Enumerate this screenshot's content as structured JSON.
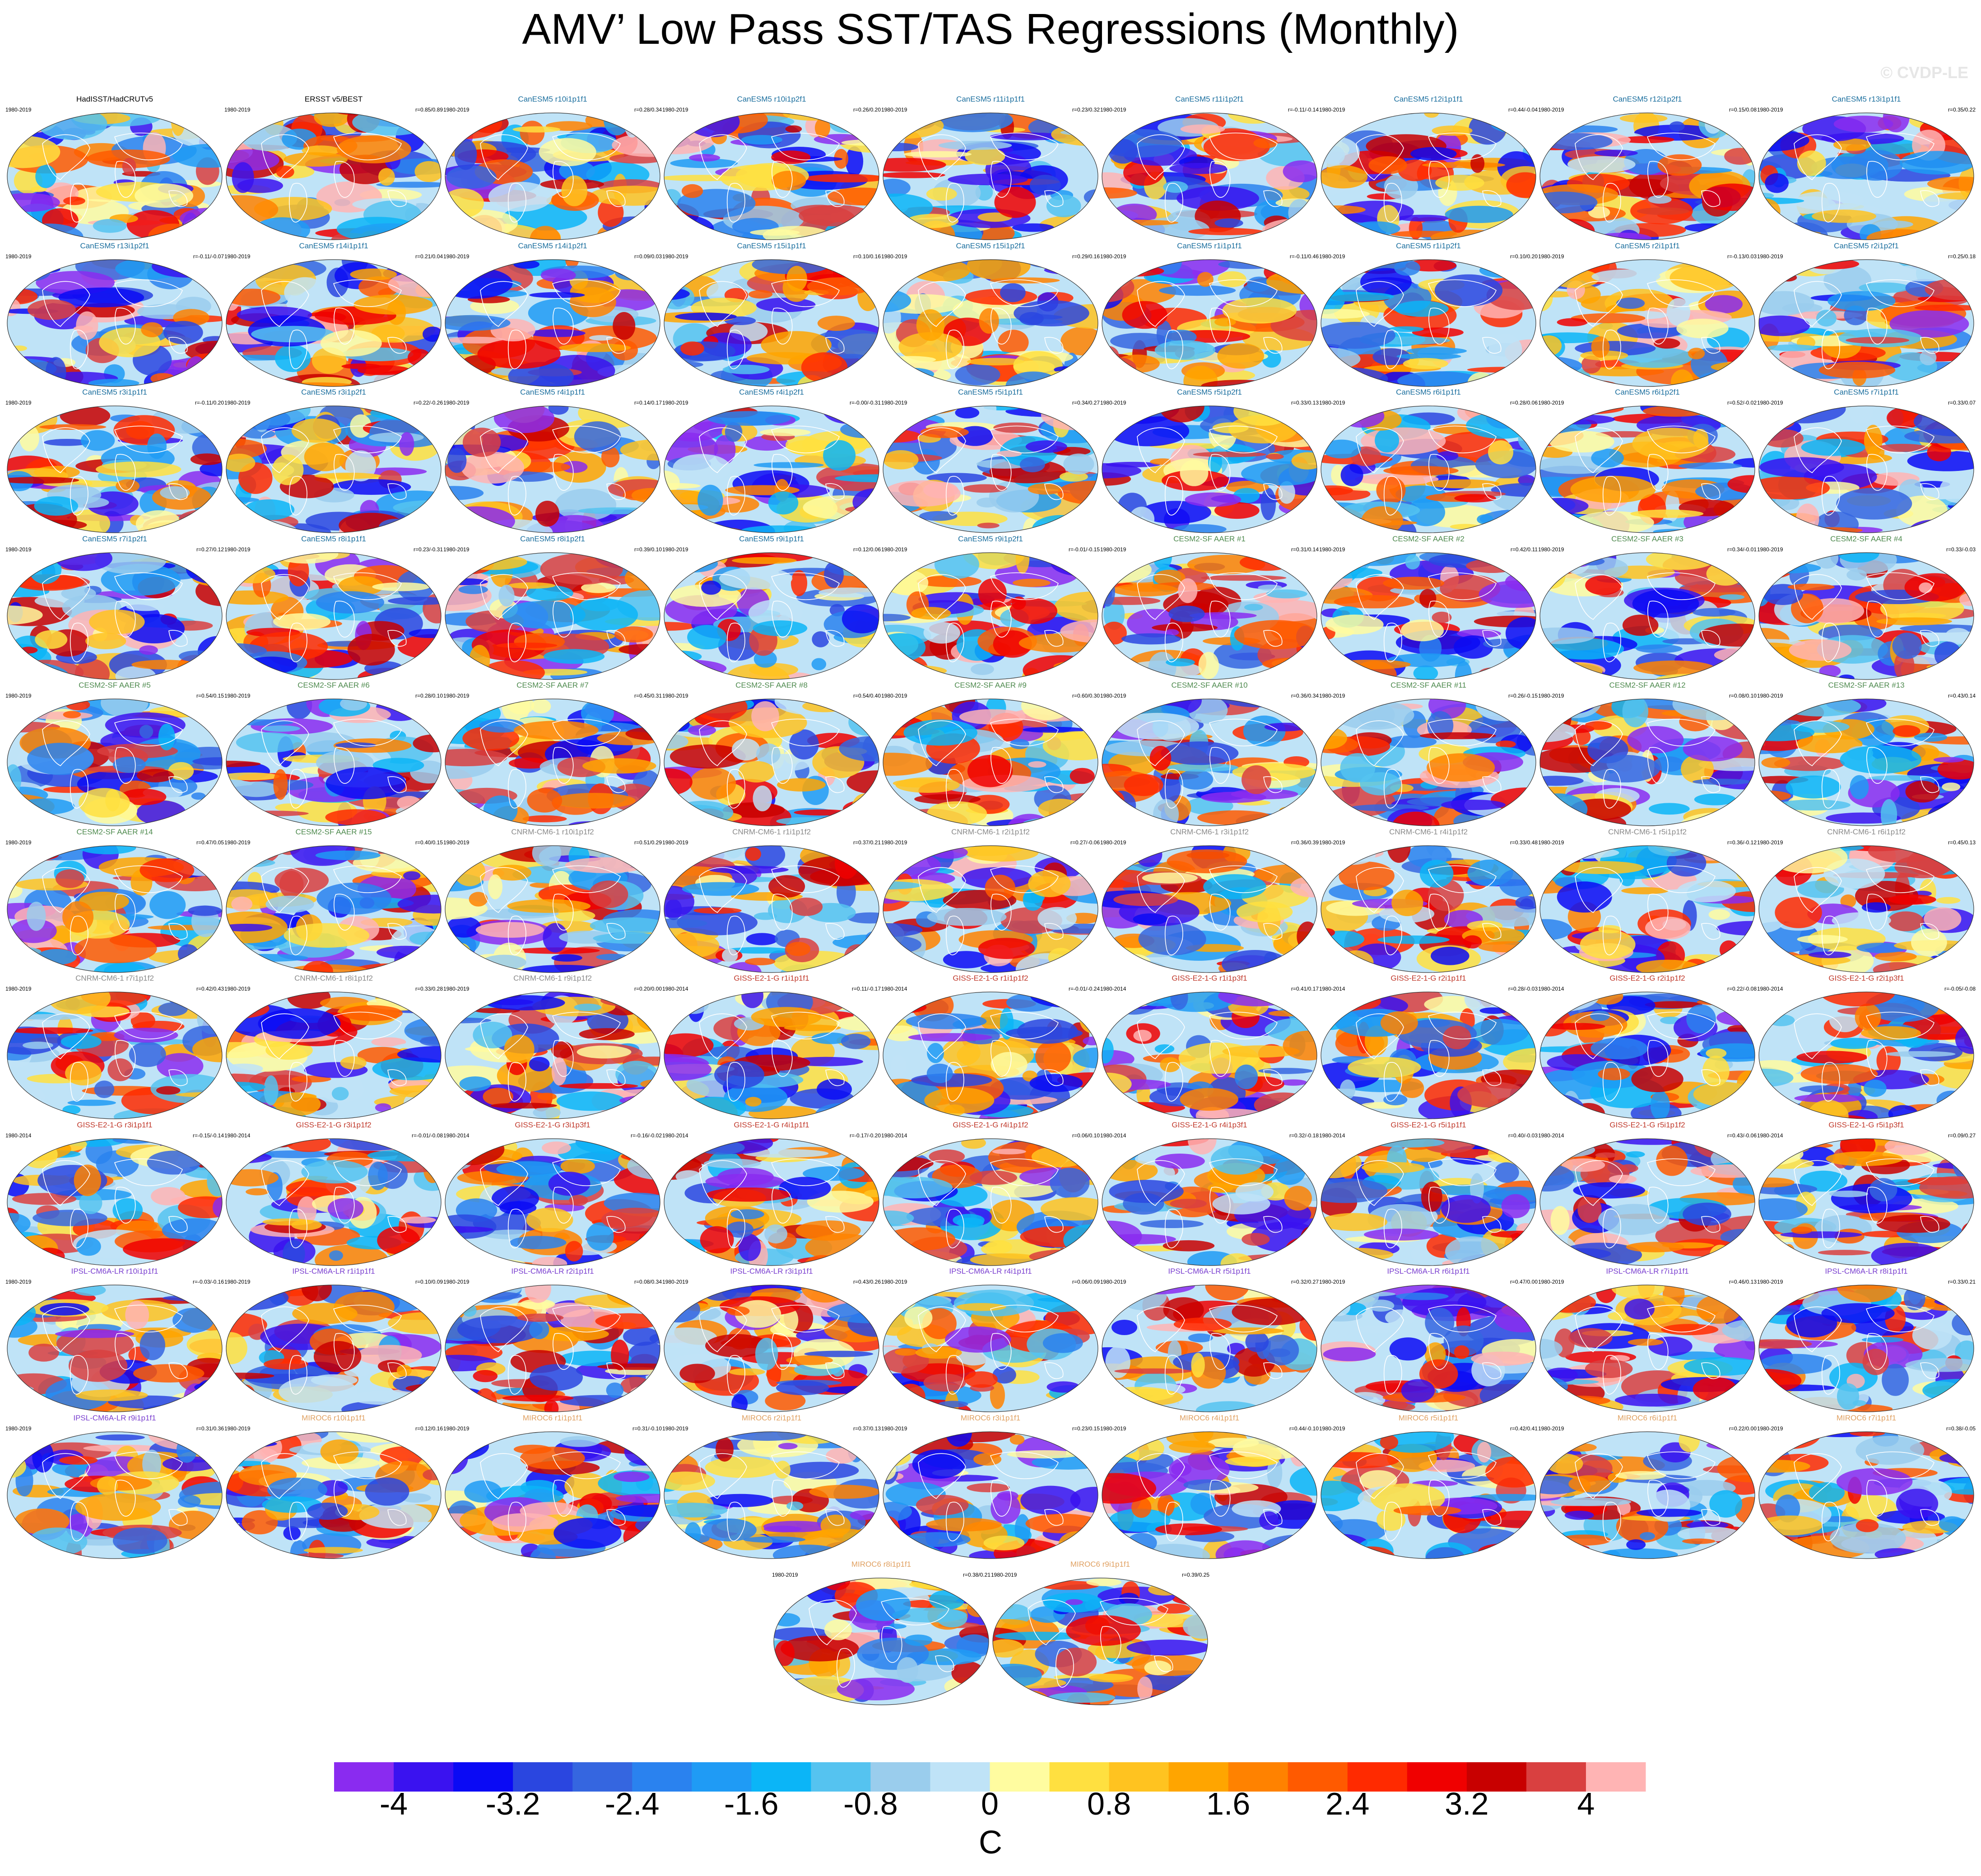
{
  "title": "AMV’ Low Pass SST/TAS Regressions (Monthly)",
  "watermark": "© CVDP-LE",
  "units": "C",
  "colorbar": {
    "colors": [
      "#8a2bf0",
      "#3a12f0",
      "#0a0af5",
      "#2a46e0",
      "#3566e0",
      "#2a82ef",
      "#1f9bf5",
      "#0bb5f7",
      "#55c3f0",
      "#9acded",
      "#bfe3f7",
      "#fffca0",
      "#ffe040",
      "#ffc320",
      "#ffa500",
      "#ff8200",
      "#ff5a00",
      "#ff2a00",
      "#f00000",
      "#c80000",
      "#d94040",
      "#ffb4b4"
    ],
    "tick_labels": [
      "-4",
      "-3.2",
      "-2.4",
      "-1.6",
      "-0.8",
      "0",
      "0.8",
      "1.6",
      "2.4",
      "3.2",
      "4"
    ],
    "tick_values": [
      -4,
      -3.2,
      -2.4,
      -1.6,
      -0.8,
      0,
      0.8,
      1.6,
      2.4,
      3.2,
      4
    ],
    "range": [
      -4.4,
      4.4
    ]
  },
  "model_colors": {
    "obs": "#000000",
    "CanESM5": "#1a6e9e",
    "CESM2-SF AAER": "#4e8a4e",
    "CNRM-CM6-1": "#8a8a8a",
    "GISS-E2-1-G": "#c0392b",
    "IPSL-CM6A-LR": "#7a3fd0",
    "MIROC6": "#e0a060"
  },
  "panels": [
    {
      "name": "HadISST/HadCRUTv5",
      "period": "1980-2019",
      "corr": "",
      "model": "obs"
    },
    {
      "name": "ERSST v5/BEST",
      "period": "1980-2019",
      "corr": "r=0.85/0.89",
      "model": "obs"
    },
    {
      "name": "CanESM5 r10i1p1f1",
      "period": "1980-2019",
      "corr": "r=0.28/0.34",
      "model": "CanESM5"
    },
    {
      "name": "CanESM5 r10i1p2f1",
      "period": "1980-2019",
      "corr": "r=0.26/0.20",
      "model": "CanESM5"
    },
    {
      "name": "CanESM5 r11i1p1f1",
      "period": "1980-2019",
      "corr": "r=0.23/0.32",
      "model": "CanESM5"
    },
    {
      "name": "CanESM5 r11i1p2f1",
      "period": "1980-2019",
      "corr": "r=-0.11/-0.14",
      "model": "CanESM5"
    },
    {
      "name": "CanESM5 r12i1p1f1",
      "period": "1980-2019",
      "corr": "r=0.44/-0.04",
      "model": "CanESM5"
    },
    {
      "name": "CanESM5 r12i1p2f1",
      "period": "1980-2019",
      "corr": "r=0.15/0.08",
      "model": "CanESM5"
    },
    {
      "name": "CanESM5 r13i1p1f1",
      "period": "1980-2019",
      "corr": "r=0.35/0.22",
      "model": "CanESM5"
    },
    {
      "name": "CanESM5 r13i1p2f1",
      "period": "1980-2019",
      "corr": "r=-0.11/-0.07",
      "model": "CanESM5"
    },
    {
      "name": "CanESM5 r14i1p1f1",
      "period": "1980-2019",
      "corr": "r=0.21/0.04",
      "model": "CanESM5"
    },
    {
      "name": "CanESM5 r14i1p2f1",
      "period": "1980-2019",
      "corr": "r=0.09/0.03",
      "model": "CanESM5"
    },
    {
      "name": "CanESM5 r15i1p1f1",
      "period": "1980-2019",
      "corr": "r=0.10/0.16",
      "model": "CanESM5"
    },
    {
      "name": "CanESM5 r15i1p2f1",
      "period": "1980-2019",
      "corr": "r=0.29/0.16",
      "model": "CanESM5"
    },
    {
      "name": "CanESM5 r1i1p1f1",
      "period": "1980-2019",
      "corr": "r=-0.11/0.46",
      "model": "CanESM5"
    },
    {
      "name": "CanESM5 r1i1p2f1",
      "period": "1980-2019",
      "corr": "r=0.10/0.20",
      "model": "CanESM5"
    },
    {
      "name": "CanESM5 r2i1p1f1",
      "period": "1980-2019",
      "corr": "r=-0.13/0.03",
      "model": "CanESM5"
    },
    {
      "name": "CanESM5 r2i1p2f1",
      "period": "1980-2019",
      "corr": "r=0.25/0.18",
      "model": "CanESM5"
    },
    {
      "name": "CanESM5 r3i1p1f1",
      "period": "1980-2019",
      "corr": "r=-0.11/0.20",
      "model": "CanESM5"
    },
    {
      "name": "CanESM5 r3i1p2f1",
      "period": "1980-2019",
      "corr": "r=0.22/-0.26",
      "model": "CanESM5"
    },
    {
      "name": "CanESM5 r4i1p1f1",
      "period": "1980-2019",
      "corr": "r=0.14/0.17",
      "model": "CanESM5"
    },
    {
      "name": "CanESM5 r4i1p2f1",
      "period": "1980-2019",
      "corr": "r=-0.00/-0.31",
      "model": "CanESM5"
    },
    {
      "name": "CanESM5 r5i1p1f1",
      "period": "1980-2019",
      "corr": "r=0.34/0.27",
      "model": "CanESM5"
    },
    {
      "name": "CanESM5 r5i1p2f1",
      "period": "1980-2019",
      "corr": "r=0.33/0.13",
      "model": "CanESM5"
    },
    {
      "name": "CanESM5 r6i1p1f1",
      "period": "1980-2019",
      "corr": "r=0.28/0.06",
      "model": "CanESM5"
    },
    {
      "name": "CanESM5 r6i1p2f1",
      "period": "1980-2019",
      "corr": "r=0.52/-0.02",
      "model": "CanESM5"
    },
    {
      "name": "CanESM5 r7i1p1f1",
      "period": "1980-2019",
      "corr": "r=0.33/0.07",
      "model": "CanESM5"
    },
    {
      "name": "CanESM5 r7i1p2f1",
      "period": "1980-2019",
      "corr": "r=0.27/0.12",
      "model": "CanESM5"
    },
    {
      "name": "CanESM5 r8i1p1f1",
      "period": "1980-2019",
      "corr": "r=0.23/-0.31",
      "model": "CanESM5"
    },
    {
      "name": "CanESM5 r8i1p2f1",
      "period": "1980-2019",
      "corr": "r=0.39/0.10",
      "model": "CanESM5"
    },
    {
      "name": "CanESM5 r9i1p1f1",
      "period": "1980-2019",
      "corr": "r=0.12/0.06",
      "model": "CanESM5"
    },
    {
      "name": "CanESM5 r9i1p2f1",
      "period": "1980-2019",
      "corr": "r=-0.01/-0.15",
      "model": "CanESM5"
    },
    {
      "name": "CESM2-SF AAER #1",
      "period": "1980-2019",
      "corr": "r=0.31/0.14",
      "model": "CESM2-SF AAER"
    },
    {
      "name": "CESM2-SF AAER #2",
      "period": "1980-2019",
      "corr": "r=0.42/0.11",
      "model": "CESM2-SF AAER"
    },
    {
      "name": "CESM2-SF AAER #3",
      "period": "1980-2019",
      "corr": "r=0.34/-0.01",
      "model": "CESM2-SF AAER"
    },
    {
      "name": "CESM2-SF AAER #4",
      "period": "1980-2019",
      "corr": "r=0.33/-0.03",
      "model": "CESM2-SF AAER"
    },
    {
      "name": "CESM2-SF AAER #5",
      "period": "1980-2019",
      "corr": "r=0.54/0.15",
      "model": "CESM2-SF AAER"
    },
    {
      "name": "CESM2-SF AAER #6",
      "period": "1980-2019",
      "corr": "r=0.28/0.10",
      "model": "CESM2-SF AAER"
    },
    {
      "name": "CESM2-SF AAER #7",
      "period": "1980-2019",
      "corr": "r=0.45/0.31",
      "model": "CESM2-SF AAER"
    },
    {
      "name": "CESM2-SF AAER #8",
      "period": "1980-2019",
      "corr": "r=0.54/0.40",
      "model": "CESM2-SF AAER"
    },
    {
      "name": "CESM2-SF AAER #9",
      "period": "1980-2019",
      "corr": "r=0.60/0.30",
      "model": "CESM2-SF AAER"
    },
    {
      "name": "CESM2-SF AAER #10",
      "period": "1980-2019",
      "corr": "r=0.36/0.34",
      "model": "CESM2-SF AAER"
    },
    {
      "name": "CESM2-SF AAER #11",
      "period": "1980-2019",
      "corr": "r=0.26/-0.15",
      "model": "CESM2-SF AAER"
    },
    {
      "name": "CESM2-SF AAER #12",
      "period": "1980-2019",
      "corr": "r=0.08/0.10",
      "model": "CESM2-SF AAER"
    },
    {
      "name": "CESM2-SF AAER #13",
      "period": "1980-2019",
      "corr": "r=0.43/0.14",
      "model": "CESM2-SF AAER"
    },
    {
      "name": "CESM2-SF AAER #14",
      "period": "1980-2019",
      "corr": "r=0.47/0.05",
      "model": "CESM2-SF AAER"
    },
    {
      "name": "CESM2-SF AAER #15",
      "period": "1980-2019",
      "corr": "r=0.40/0.15",
      "model": "CESM2-SF AAER"
    },
    {
      "name": "CNRM-CM6-1 r10i1p1f2",
      "period": "1980-2019",
      "corr": "r=0.51/0.29",
      "model": "CNRM-CM6-1"
    },
    {
      "name": "CNRM-CM6-1 r1i1p1f2",
      "period": "1980-2019",
      "corr": "r=0.37/0.21",
      "model": "CNRM-CM6-1"
    },
    {
      "name": "CNRM-CM6-1 r2i1p1f2",
      "period": "1980-2019",
      "corr": "r=0.27/-0.06",
      "model": "CNRM-CM6-1"
    },
    {
      "name": "CNRM-CM6-1 r3i1p1f2",
      "period": "1980-2019",
      "corr": "r=0.36/0.39",
      "model": "CNRM-CM6-1"
    },
    {
      "name": "CNRM-CM6-1 r4i1p1f2",
      "period": "1980-2019",
      "corr": "r=0.33/0.48",
      "model": "CNRM-CM6-1"
    },
    {
      "name": "CNRM-CM6-1 r5i1p1f2",
      "period": "1980-2019",
      "corr": "r=0.36/-0.12",
      "model": "CNRM-CM6-1"
    },
    {
      "name": "CNRM-CM6-1 r6i1p1f2",
      "period": "1980-2019",
      "corr": "r=0.45/0.13",
      "model": "CNRM-CM6-1"
    },
    {
      "name": "CNRM-CM6-1 r7i1p1f2",
      "period": "1980-2019",
      "corr": "r=0.42/0.43",
      "model": "CNRM-CM6-1"
    },
    {
      "name": "CNRM-CM6-1 r8i1p1f2",
      "period": "1980-2019",
      "corr": "r=0.33/0.28",
      "model": "CNRM-CM6-1"
    },
    {
      "name": "CNRM-CM6-1 r9i1p1f2",
      "period": "1980-2019",
      "corr": "r=0.20/0.00",
      "model": "CNRM-CM6-1"
    },
    {
      "name": "GISS-E2-1-G r1i1p1f1",
      "period": "1980-2014",
      "corr": "r=0.11/-0.17",
      "model": "GISS-E2-1-G"
    },
    {
      "name": "GISS-E2-1-G r1i1p1f2",
      "period": "1980-2014",
      "corr": "r=-0.01/-0.24",
      "model": "GISS-E2-1-G"
    },
    {
      "name": "GISS-E2-1-G r1i1p3f1",
      "period": "1980-2014",
      "corr": "r=0.41/0.17",
      "model": "GISS-E2-1-G"
    },
    {
      "name": "GISS-E2-1-G r2i1p1f1",
      "period": "1980-2014",
      "corr": "r=0.28/-0.03",
      "model": "GISS-E2-1-G"
    },
    {
      "name": "GISS-E2-1-G r2i1p1f2",
      "period": "1980-2014",
      "corr": "r=0.22/-0.08",
      "model": "GISS-E2-1-G"
    },
    {
      "name": "GISS-E2-1-G r2i1p3f1",
      "period": "1980-2014",
      "corr": "r=-0.05/-0.08",
      "model": "GISS-E2-1-G"
    },
    {
      "name": "GISS-E2-1-G r3i1p1f1",
      "period": "1980-2014",
      "corr": "r=-0.15/-0.14",
      "model": "GISS-E2-1-G"
    },
    {
      "name": "GISS-E2-1-G r3i1p1f2",
      "period": "1980-2014",
      "corr": "r=-0.01/-0.08",
      "model": "GISS-E2-1-G"
    },
    {
      "name": "GISS-E2-1-G r3i1p3f1",
      "period": "1980-2014",
      "corr": "r=-0.16/-0.02",
      "model": "GISS-E2-1-G"
    },
    {
      "name": "GISS-E2-1-G r4i1p1f1",
      "period": "1980-2014",
      "corr": "r=-0.17/-0.20",
      "model": "GISS-E2-1-G"
    },
    {
      "name": "GISS-E2-1-G r4i1p1f2",
      "period": "1980-2014",
      "corr": "r=0.06/0.10",
      "model": "GISS-E2-1-G"
    },
    {
      "name": "GISS-E2-1-G r4i1p3f1",
      "period": "1980-2014",
      "corr": "r=0.32/-0.18",
      "model": "GISS-E2-1-G"
    },
    {
      "name": "GISS-E2-1-G r5i1p1f1",
      "period": "1980-2014",
      "corr": "r=0.40/-0.03",
      "model": "GISS-E2-1-G"
    },
    {
      "name": "GISS-E2-1-G r5i1p1f2",
      "period": "1980-2014",
      "corr": "r=0.43/-0.06",
      "model": "GISS-E2-1-G"
    },
    {
      "name": "GISS-E2-1-G r5i1p3f1",
      "period": "1980-2014",
      "corr": "r=0.09/0.27",
      "model": "GISS-E2-1-G"
    },
    {
      "name": "IPSL-CM6A-LR r10i1p1f1",
      "period": "1980-2019",
      "corr": "r=-0.03/-0.16",
      "model": "IPSL-CM6A-LR"
    },
    {
      "name": "IPSL-CM6A-LR r1i1p1f1",
      "period": "1980-2019",
      "corr": "r=0.10/0.09",
      "model": "IPSL-CM6A-LR"
    },
    {
      "name": "IPSL-CM6A-LR r2i1p1f1",
      "period": "1980-2019",
      "corr": "r=0.08/0.34",
      "model": "IPSL-CM6A-LR"
    },
    {
      "name": "IPSL-CM6A-LR r3i1p1f1",
      "period": "1980-2019",
      "corr": "r=0.43/0.26",
      "model": "IPSL-CM6A-LR"
    },
    {
      "name": "IPSL-CM6A-LR r4i1p1f1",
      "period": "1980-2019",
      "corr": "r=0.06/0.09",
      "model": "IPSL-CM6A-LR"
    },
    {
      "name": "IPSL-CM6A-LR r5i1p1f1",
      "period": "1980-2019",
      "corr": "r=0.32/0.27",
      "model": "IPSL-CM6A-LR"
    },
    {
      "name": "IPSL-CM6A-LR r6i1p1f1",
      "period": "1980-2019",
      "corr": "r=0.47/0.00",
      "model": "IPSL-CM6A-LR"
    },
    {
      "name": "IPSL-CM6A-LR r7i1p1f1",
      "period": "1980-2019",
      "corr": "r=0.46/0.13",
      "model": "IPSL-CM6A-LR"
    },
    {
      "name": "IPSL-CM6A-LR r8i1p1f1",
      "period": "1980-2019",
      "corr": "r=0.33/0.21",
      "model": "IPSL-CM6A-LR"
    },
    {
      "name": "IPSL-CM6A-LR r9i1p1f1",
      "period": "1980-2019",
      "corr": "r=0.31/0.36",
      "model": "IPSL-CM6A-LR"
    },
    {
      "name": "MIROC6 r10i1p1f1",
      "period": "1980-2019",
      "corr": "r=0.12/0.16",
      "model": "MIROC6"
    },
    {
      "name": "MIROC6 r1i1p1f1",
      "period": "1980-2019",
      "corr": "r=0.31/-0.10",
      "model": "MIROC6"
    },
    {
      "name": "MIROC6 r2i1p1f1",
      "period": "1980-2019",
      "corr": "r=0.37/0.13",
      "model": "MIROC6"
    },
    {
      "name": "MIROC6 r3i1p1f1",
      "period": "1980-2019",
      "corr": "r=0.23/0.15",
      "model": "MIROC6"
    },
    {
      "name": "MIROC6 r4i1p1f1",
      "period": "1980-2019",
      "corr": "r=0.44/-0.10",
      "model": "MIROC6"
    },
    {
      "name": "MIROC6 r5i1p1f1",
      "period": "1980-2019",
      "corr": "r=0.42/0.41",
      "model": "MIROC6"
    },
    {
      "name": "MIROC6 r6i1p1f1",
      "period": "1980-2019",
      "corr": "r=0.22/0.00",
      "model": "MIROC6"
    },
    {
      "name": "MIROC6 r7i1p1f1",
      "period": "1980-2019",
      "corr": "r=0.38/-0.05",
      "model": "MIROC6"
    },
    {
      "name": "MIROC6 r8i1p1f1",
      "period": "1980-2019",
      "corr": "r=0.38/0.21",
      "model": "MIROC6"
    },
    {
      "name": "MIROC6 r9i1p1f1",
      "period": "1980-2019",
      "corr": "r=0.39/0.25",
      "model": "MIROC6"
    }
  ]
}
